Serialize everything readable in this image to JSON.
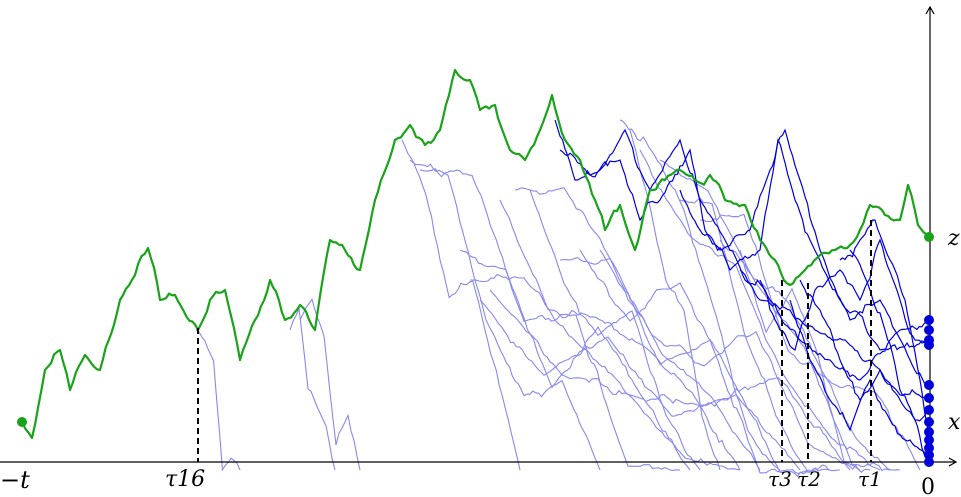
{
  "labels": {
    "neg_t": "−t",
    "tau16": "τ16",
    "tau3": "τ3",
    "tau2": "τ2",
    "tau1": "τ1",
    "zero": "0",
    "z": "z",
    "x": "x"
  },
  "colors": {
    "green_path": "#1aa31a",
    "dark_blue": "#0000dd",
    "light_blue": "#8888ee",
    "axis": "#000000"
  }
}
